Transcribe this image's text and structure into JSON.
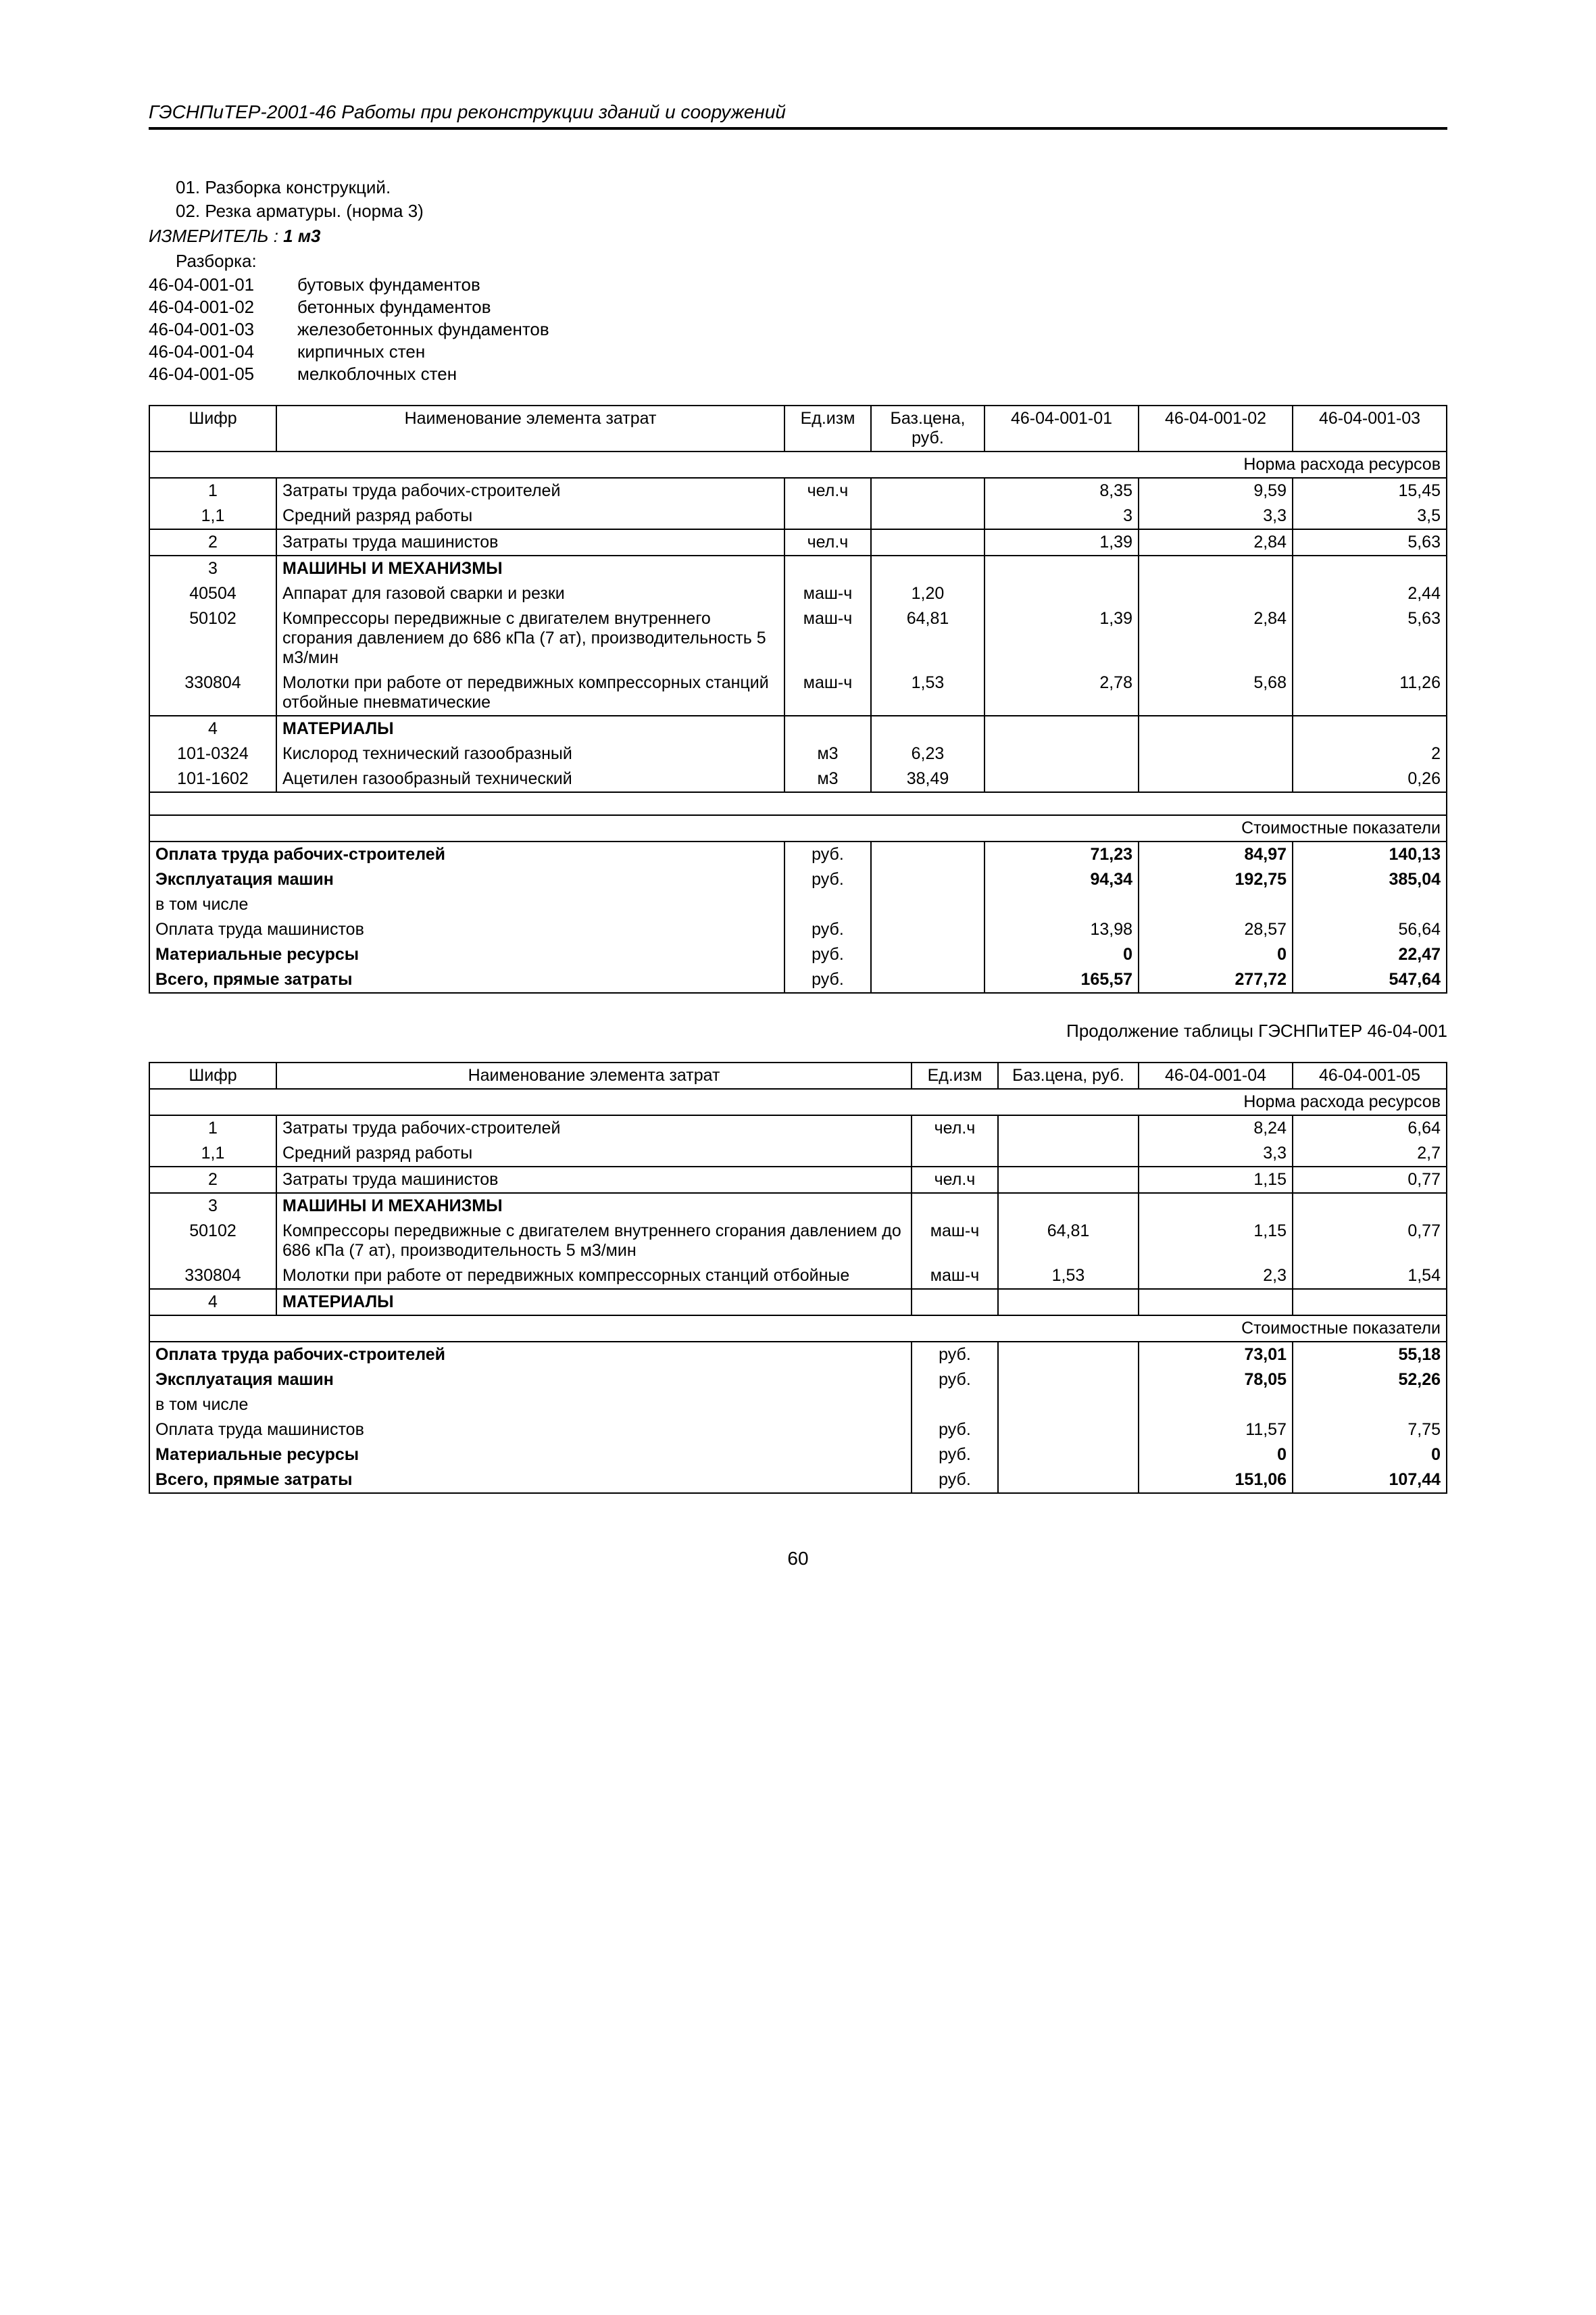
{
  "header": "ГЭСНПиТЕР-2001-46 Работы при реконструкции зданий и сооружений",
  "intro": {
    "l1": "01. Разборка конструкций.",
    "l2": "02. Резка арматуры. (норма 3)",
    "measure_label": "ИЗМЕРИТЕЛЬ : ",
    "measure_value": "1 м3",
    "razborka": "Разборка:",
    "codes": [
      {
        "c": "46-04-001-01",
        "t": "бутовых фундаментов"
      },
      {
        "c": "46-04-001-02",
        "t": "бетонных фундаментов"
      },
      {
        "c": "46-04-001-03",
        "t": "железобетонных фундаментов"
      },
      {
        "c": "46-04-001-04",
        "t": "кирпичных стен"
      },
      {
        "c": "46-04-001-05",
        "t": "мелкоблочных стен"
      }
    ]
  },
  "t1": {
    "headers": {
      "code": "Шифр",
      "name": "Наименование элемента затрат",
      "unit": "Ед.изм",
      "price": "Баз.цена, руб.",
      "c1": "46-04-001-01",
      "c2": "46-04-001-02",
      "c3": "46-04-001-03",
      "norma": "Норма расхода ресурсов",
      "cost": "Стоимостные показатели"
    },
    "rows": [
      {
        "code": "1",
        "name": "Затраты труда рабочих-строителей",
        "unit": "чел.ч",
        "price": "",
        "v1": "8,35",
        "v2": "9,59",
        "v3": "15,45"
      },
      {
        "code": "1,1",
        "name": "Средний разряд работы",
        "unit": "",
        "price": "",
        "v1": "3",
        "v2": "3,3",
        "v3": "3,5"
      },
      {
        "code": "2",
        "name": "Затраты труда машинистов",
        "unit": "чел.ч",
        "price": "",
        "v1": "1,39",
        "v2": "2,84",
        "v3": "5,63",
        "bt": true
      },
      {
        "code": "3",
        "name": "МАШИНЫ И МЕХАНИЗМЫ",
        "unit": "",
        "price": "",
        "v1": "",
        "v2": "",
        "v3": "",
        "bold": true,
        "bt": true
      },
      {
        "code": "40504",
        "name": "Аппарат для газовой сварки и резки",
        "unit": "маш-ч",
        "price": "1,20",
        "v1": "",
        "v2": "",
        "v3": "2,44"
      },
      {
        "code": "50102",
        "name": "Компрессоры передвижные с двигателем внутреннего сгорания давлением до 686 кПа (7 ат), производительность 5 м3/мин",
        "unit": "маш-ч",
        "price": "64,81",
        "v1": "1,39",
        "v2": "2,84",
        "v3": "5,63"
      },
      {
        "code": "330804",
        "name": "Молотки при работе от передвижных компрессорных станций отбойные пневматические",
        "unit": "маш-ч",
        "price": "1,53",
        "v1": "2,78",
        "v2": "5,68",
        "v3": "11,26"
      },
      {
        "code": "4",
        "name": "МАТЕРИАЛЫ",
        "unit": "",
        "price": "",
        "v1": "",
        "v2": "",
        "v3": "",
        "bold": true,
        "bt": true
      },
      {
        "code": "101-0324",
        "name": "Кислород технический газообразный",
        "unit": "м3",
        "price": "6,23",
        "v1": "",
        "v2": "",
        "v3": "2"
      },
      {
        "code": "101-1602",
        "name": "Ацетилен газообразный технический",
        "unit": "м3",
        "price": "38,49",
        "v1": "",
        "v2": "",
        "v3": "0,26"
      }
    ],
    "cost_rows": [
      {
        "name": "Оплата труда рабочих-строителей",
        "unit": "руб.",
        "v1": "71,23",
        "v2": "84,97",
        "v3": "140,13",
        "bold": true
      },
      {
        "name": "Эксплуатация машин",
        "unit": "руб.",
        "v1": "94,34",
        "v2": "192,75",
        "v3": "385,04",
        "bold": true
      },
      {
        "name": "в том числе",
        "unit": "",
        "v1": "",
        "v2": "",
        "v3": ""
      },
      {
        "name": "Оплата труда машинистов",
        "unit": "руб.",
        "v1": "13,98",
        "v2": "28,57",
        "v3": "56,64"
      },
      {
        "name": "Материальные ресурсы",
        "unit": "руб.",
        "v1": "0",
        "v2": "0",
        "v3": "22,47",
        "bold": true
      },
      {
        "name": "Всего, прямые затраты",
        "unit": "руб.",
        "v1": "165,57",
        "v2": "277,72",
        "v3": "547,64",
        "bold": true
      }
    ]
  },
  "t2": {
    "cont": "Продолжение таблицы ГЭСНПиТЕР 46-04-001",
    "headers": {
      "code": "Шифр",
      "name": "Наименование элемента затрат",
      "unit": "Ед.изм",
      "price": "Баз.цена, руб.",
      "c1": "46-04-001-04",
      "c2": "46-04-001-05",
      "norma": "Норма расхода ресурсов",
      "cost": "Стоимостные показатели"
    },
    "rows": [
      {
        "code": "1",
        "name": "Затраты труда рабочих-строителей",
        "unit": "чел.ч",
        "price": "",
        "v1": "8,24",
        "v2": "6,64"
      },
      {
        "code": "1,1",
        "name": "Средний разряд работы",
        "unit": "",
        "price": "",
        "v1": "3,3",
        "v2": "2,7"
      },
      {
        "code": "2",
        "name": "Затраты труда машинистов",
        "unit": "чел.ч",
        "price": "",
        "v1": "1,15",
        "v2": "0,77",
        "bt": true
      },
      {
        "code": "3",
        "name": "МАШИНЫ И МЕХАНИЗМЫ",
        "unit": "",
        "price": "",
        "v1": "",
        "v2": "",
        "bold": true,
        "bt": true
      },
      {
        "code": "50102",
        "name": "Компрессоры передвижные с двигателем внутреннего сгорания давлением до 686 кПа (7 ат), производительность 5 м3/мин",
        "unit": "маш-ч",
        "price": "64,81",
        "v1": "1,15",
        "v2": "0,77"
      },
      {
        "code": "330804",
        "name": "Молотки при работе от передвижных компрессорных станций отбойные",
        "unit": "маш-ч",
        "price": "1,53",
        "v1": "2,3",
        "v2": "1,54"
      },
      {
        "code": "4",
        "name": "МАТЕРИАЛЫ",
        "unit": "",
        "price": "",
        "v1": "",
        "v2": "",
        "bold": true,
        "bt": true
      }
    ],
    "cost_rows": [
      {
        "name": "Оплата труда рабочих-строителей",
        "unit": "руб.",
        "v1": "73,01",
        "v2": "55,18",
        "bold": true
      },
      {
        "name": "Эксплуатация машин",
        "unit": "руб.",
        "v1": "78,05",
        "v2": "52,26",
        "bold": true
      },
      {
        "name": "в том числе",
        "unit": "",
        "v1": "",
        "v2": ""
      },
      {
        "name": "Оплата труда машинистов",
        "unit": "руб.",
        "v1": "11,57",
        "v2": "7,75"
      },
      {
        "name": "Материальные ресурсы",
        "unit": "руб.",
        "v1": "0",
        "v2": "0",
        "bold": true
      },
      {
        "name": "Всего, прямые затраты",
        "unit": "руб.",
        "v1": "151,06",
        "v2": "107,44",
        "bold": true
      }
    ]
  },
  "page_num": "60"
}
